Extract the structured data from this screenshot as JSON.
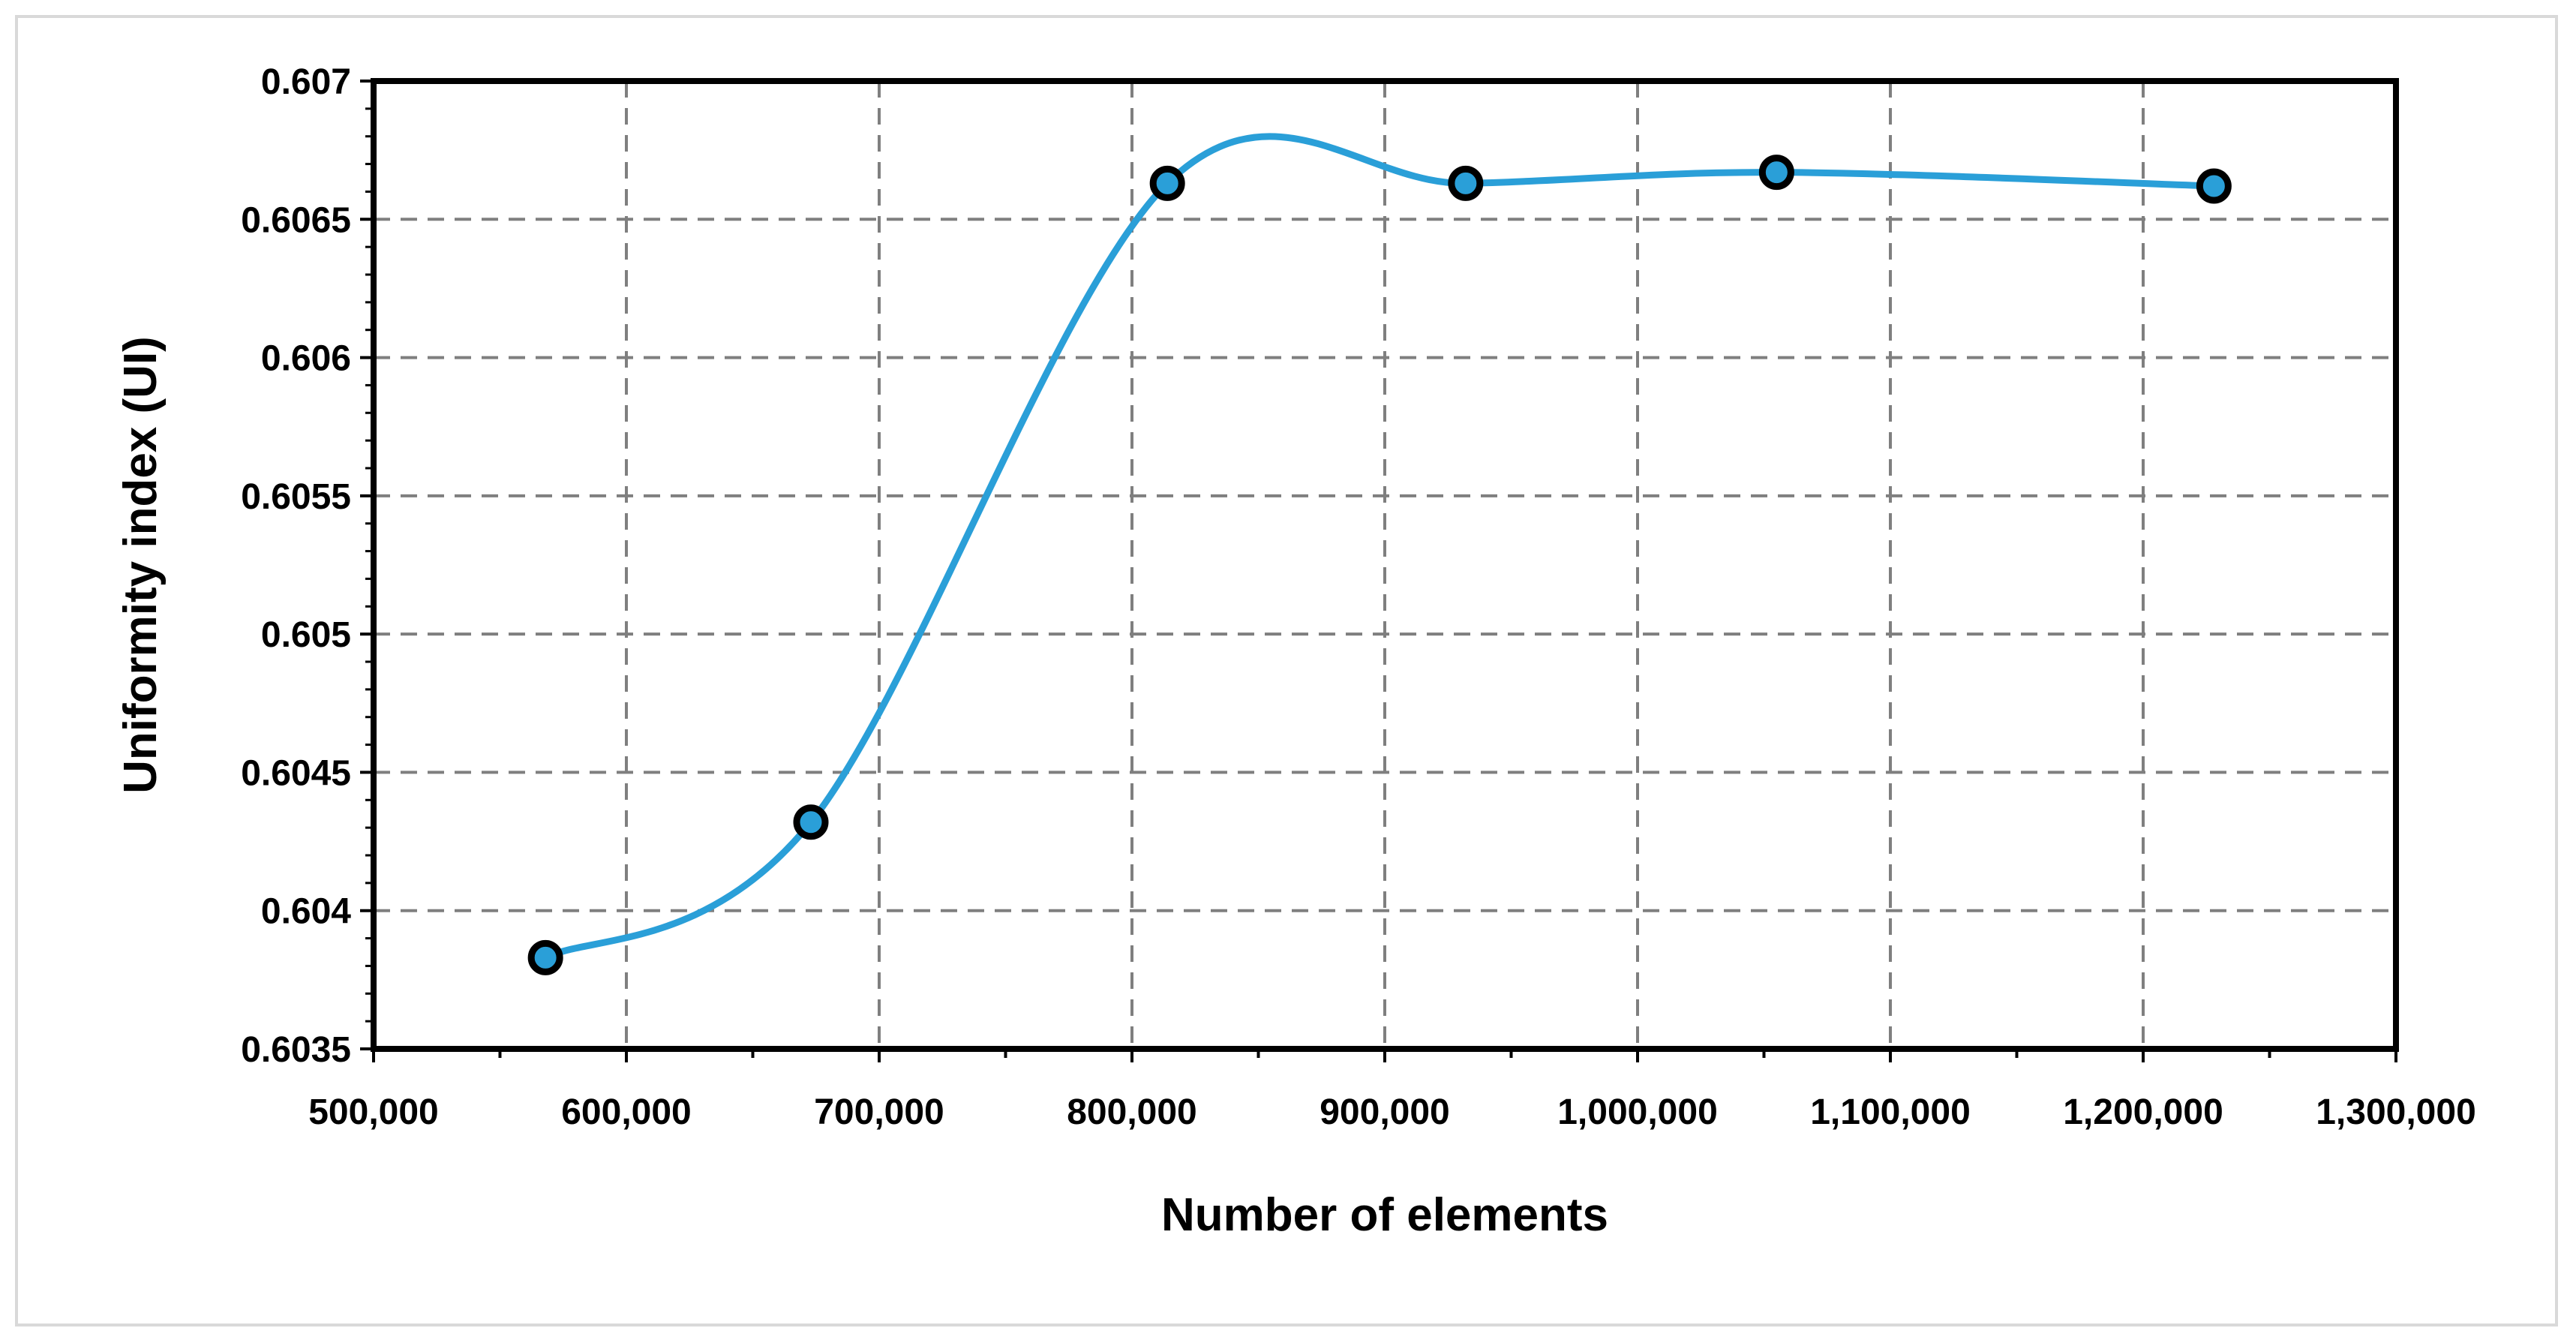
{
  "chart_data": {
    "type": "line",
    "title": "",
    "xlabel": "Number of elements",
    "ylabel": "Uniformity index (UI)",
    "xlim": [
      500000,
      1300000
    ],
    "ylim": [
      0.6035,
      0.607
    ],
    "x_ticks": [
      500000,
      600000,
      700000,
      800000,
      900000,
      1000000,
      1100000,
      1200000,
      1300000
    ],
    "x_tick_labels": [
      "500,000",
      "600,000",
      "700,000",
      "800,000",
      "900,000",
      "1,000,000",
      "1,100,000",
      "1,200,000",
      "1,300,000"
    ],
    "y_ticks": [
      0.6035,
      0.604,
      0.6045,
      0.605,
      0.6055,
      0.606,
      0.6065,
      0.607
    ],
    "y_tick_labels": [
      "0.6035",
      "0.604",
      "0.6045",
      "0.605",
      "0.6055",
      "0.606",
      "0.6065",
      "0.607"
    ],
    "grid": true,
    "grid_style": "dashed",
    "smooth": true,
    "series": [
      {
        "x": [
          568000,
          673000,
          814000,
          932000,
          1055000,
          1228000
        ],
        "y": [
          0.60383,
          0.60432,
          0.60663,
          0.60663,
          0.60667,
          0.60662
        ],
        "color": "#2a9fd8",
        "marker_fill": "#2a9fd8",
        "marker_edge": "#000000"
      }
    ],
    "frame_color": "#000000",
    "grid_color": "#7f7f7f"
  }
}
